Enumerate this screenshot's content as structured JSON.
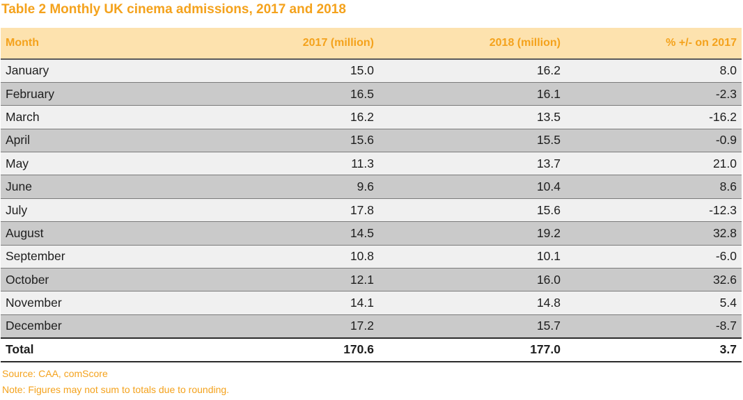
{
  "title": "Table 2 Monthly UK cinema admissions, 2017 and 2018",
  "table": {
    "headers": {
      "month": "Month",
      "y2017": "2017 (million)",
      "y2018": "2018 (million)",
      "pct": "% +/- on 2017"
    },
    "rows": [
      {
        "month": "January",
        "y2017": "15.0",
        "y2018": "16.2",
        "pct": "8.0"
      },
      {
        "month": "February",
        "y2017": "16.5",
        "y2018": "16.1",
        "pct": "-2.3"
      },
      {
        "month": "March",
        "y2017": "16.2",
        "y2018": "13.5",
        "pct": "-16.2"
      },
      {
        "month": "April",
        "y2017": "15.6",
        "y2018": "15.5",
        "pct": "-0.9"
      },
      {
        "month": "May",
        "y2017": "11.3",
        "y2018": "13.7",
        "pct": "21.0"
      },
      {
        "month": "June",
        "y2017": "9.6",
        "y2018": "10.4",
        "pct": "8.6"
      },
      {
        "month": "July",
        "y2017": "17.8",
        "y2018": "15.6",
        "pct": "-12.3"
      },
      {
        "month": "August",
        "y2017": "14.5",
        "y2018": "19.2",
        "pct": "32.8"
      },
      {
        "month": "September",
        "y2017": "10.8",
        "y2018": "10.1",
        "pct": "-6.0"
      },
      {
        "month": "October",
        "y2017": "12.1",
        "y2018": "16.0",
        "pct": "32.6"
      },
      {
        "month": "November",
        "y2017": "14.1",
        "y2018": "14.8",
        "pct": "5.4"
      },
      {
        "month": "December",
        "y2017": "17.2",
        "y2018": "15.7",
        "pct": "-8.7"
      }
    ],
    "total": {
      "month": "Total",
      "y2017": "170.6",
      "y2018": "177.0",
      "pct": "3.7"
    }
  },
  "source": "Source: CAA, comScore",
  "note": "Note: Figures may not sum to totals due to rounding.",
  "colors": {
    "accent": "#f4a21c",
    "header_bg": "#fde2ae",
    "row_light": "#f0f0f0",
    "row_dark": "#cacaca"
  }
}
